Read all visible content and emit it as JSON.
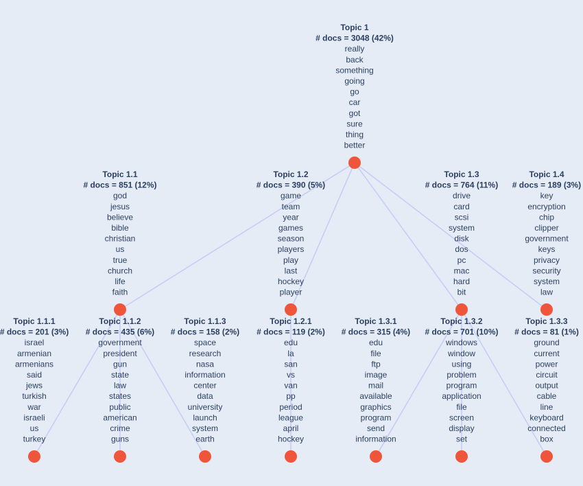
{
  "colors": {
    "background": "#e5ecf6",
    "edge": "#c6cdf6",
    "node": "#ef553b",
    "text": "#2a3f5f"
  },
  "nodes": [
    {
      "id": "root",
      "title": "Topic 1",
      "docs": "# docs = 3048 (42%)",
      "words": [
        "really",
        "back",
        "something",
        "going",
        "go",
        "car",
        "got",
        "sure",
        "thing",
        "better"
      ]
    },
    {
      "id": "t11",
      "title": "Topic 1.1",
      "docs": "# docs = 851 (12%)",
      "words": [
        "god",
        "jesus",
        "believe",
        "bible",
        "christian",
        "us",
        "true",
        "church",
        "life",
        "faith"
      ]
    },
    {
      "id": "t12",
      "title": "Topic 1.2",
      "docs": "# docs = 390 (5%)",
      "words": [
        "game",
        "team",
        "year",
        "games",
        "season",
        "players",
        "play",
        "last",
        "hockey",
        "player"
      ]
    },
    {
      "id": "t13",
      "title": "Topic 1.3",
      "docs": "# docs = 764 (11%)",
      "words": [
        "drive",
        "card",
        "scsi",
        "system",
        "disk",
        "dos",
        "pc",
        "mac",
        "hard",
        "bit"
      ]
    },
    {
      "id": "t14",
      "title": "Topic 1.4",
      "docs": "# docs = 189 (3%)",
      "words": [
        "key",
        "encryption",
        "chip",
        "clipper",
        "government",
        "keys",
        "privacy",
        "security",
        "system",
        "law"
      ]
    },
    {
      "id": "t111",
      "title": "Topic 1.1.1",
      "docs": "# docs = 201 (3%)",
      "words": [
        "israel",
        "armenian",
        "armenians",
        "said",
        "jews",
        "turkish",
        "war",
        "israeli",
        "us",
        "turkey"
      ]
    },
    {
      "id": "t112",
      "title": "Topic 1.1.2",
      "docs": "# docs = 435 (6%)",
      "words": [
        "government",
        "president",
        "gun",
        "state",
        "law",
        "states",
        "public",
        "american",
        "crime",
        "guns"
      ]
    },
    {
      "id": "t113",
      "title": "Topic 1.1.3",
      "docs": "# docs = 158 (2%)",
      "words": [
        "space",
        "research",
        "nasa",
        "information",
        "center",
        "data",
        "university",
        "launch",
        "system",
        "earth"
      ]
    },
    {
      "id": "t121",
      "title": "Topic 1.2.1",
      "docs": "# docs = 119 (2%)",
      "words": [
        "edu",
        "la",
        "san",
        "vs",
        "van",
        "pp",
        "period",
        "league",
        "april",
        "hockey"
      ]
    },
    {
      "id": "t131",
      "title": "Topic 1.3.1",
      "docs": "# docs = 315 (4%)",
      "words": [
        "edu",
        "file",
        "ftp",
        "image",
        "mail",
        "available",
        "graphics",
        "program",
        "send",
        "information"
      ]
    },
    {
      "id": "t132",
      "title": "Topic 1.3.2",
      "docs": "# docs = 701 (10%)",
      "words": [
        "windows",
        "window",
        "using",
        "problem",
        "program",
        "application",
        "file",
        "screen",
        "display",
        "set"
      ]
    },
    {
      "id": "t133",
      "title": "Topic 1.3.3",
      "docs": "# docs = 81 (1%)",
      "words": [
        "ground",
        "current",
        "power",
        "circuit",
        "output",
        "cable",
        "line",
        "keyboard",
        "connected",
        "box"
      ]
    }
  ],
  "edges": [
    [
      "root",
      "t11"
    ],
    [
      "root",
      "t12"
    ],
    [
      "root",
      "t13"
    ],
    [
      "root",
      "t14"
    ],
    [
      "t11",
      "t111"
    ],
    [
      "t11",
      "t112"
    ],
    [
      "t11",
      "t113"
    ],
    [
      "t12",
      "t121"
    ],
    [
      "t13",
      "t131"
    ],
    [
      "t13",
      "t132"
    ],
    [
      "t13",
      "t133"
    ]
  ]
}
